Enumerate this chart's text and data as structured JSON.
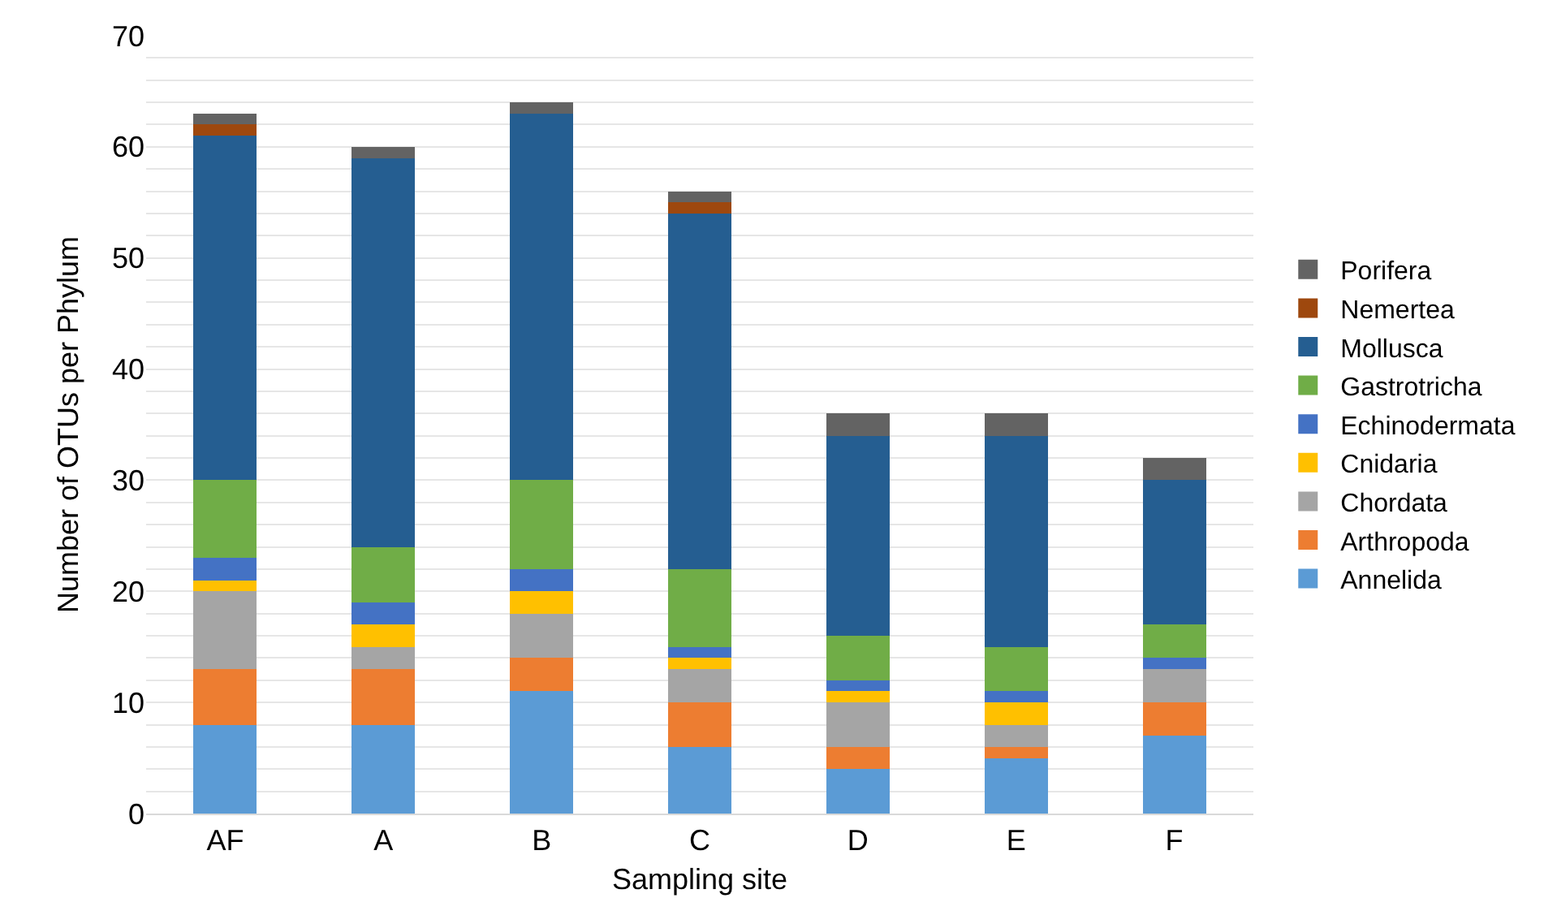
{
  "chart_data": {
    "type": "bar",
    "stacked": true,
    "xlabel": "Sampling site",
    "ylabel": "Number of OTUs per Phylum",
    "categories": [
      "AF",
      "A",
      "B",
      "C",
      "D",
      "E",
      "F"
    ],
    "series": [
      {
        "name": "Annelida",
        "color": "#5b9bd5",
        "values": [
          8,
          8,
          11,
          6,
          4,
          5,
          7
        ]
      },
      {
        "name": "Arthropoda",
        "color": "#ed7d31",
        "values": [
          5,
          5,
          3,
          4,
          2,
          1,
          3
        ]
      },
      {
        "name": "Chordata",
        "color": "#a5a5a5",
        "values": [
          7,
          2,
          4,
          3,
          4,
          2,
          3
        ]
      },
      {
        "name": "Cnidaria",
        "color": "#ffc000",
        "values": [
          1,
          2,
          2,
          1,
          1,
          2,
          0
        ]
      },
      {
        "name": "Echinodermata",
        "color": "#4472c4",
        "values": [
          2,
          2,
          2,
          1,
          1,
          1,
          1
        ]
      },
      {
        "name": "Gastrotricha",
        "color": "#70ad47",
        "values": [
          7,
          5,
          8,
          7,
          4,
          4,
          3
        ]
      },
      {
        "name": "Mollusca",
        "color": "#255e91",
        "values": [
          31,
          35,
          33,
          32,
          18,
          19,
          13
        ]
      },
      {
        "name": "Nemertea",
        "color": "#9e480e",
        "values": [
          1,
          0,
          0,
          1,
          0,
          0,
          0
        ]
      },
      {
        "name": "Porifera",
        "color": "#636363",
        "values": [
          1,
          1,
          1,
          1,
          2,
          2,
          2
        ]
      }
    ],
    "ylim": [
      0,
      70
    ],
    "yticks": [
      0,
      {
        "value": 2,
        "label": null
      },
      {
        "value": 4,
        "label": null
      },
      {
        "value": 6,
        "label": null
      },
      {
        "value": 8,
        "label": null
      },
      10,
      {
        "value": 12,
        "label": null
      },
      {
        "value": 14,
        "label": null
      },
      {
        "value": 16,
        "label": null
      },
      {
        "value": 18,
        "label": null
      },
      20,
      {
        "value": 22,
        "label": null
      },
      {
        "value": 24,
        "label": null
      },
      {
        "value": 26,
        "label": null
      },
      {
        "value": 28,
        "label": null
      },
      30,
      {
        "value": 32,
        "label": null
      },
      {
        "value": 34,
        "label": null
      },
      {
        "value": 36,
        "label": null
      },
      {
        "value": 38,
        "label": null
      },
      40,
      {
        "value": 42,
        "label": null
      },
      {
        "value": 44,
        "label": null
      },
      {
        "value": 46,
        "label": null
      },
      {
        "value": 48,
        "label": null
      },
      50,
      {
        "value": 52,
        "label": null
      },
      {
        "value": 54,
        "label": null
      },
      {
        "value": 56,
        "label": null
      },
      {
        "value": 58,
        "label": null
      },
      60,
      {
        "value": 62,
        "label": null
      },
      {
        "value": 64,
        "label": null
      },
      {
        "value": 66,
        "label": null
      },
      {
        "value": 68,
        "label": null
      },
      70
    ],
    "grid": "y",
    "legend": "right"
  }
}
